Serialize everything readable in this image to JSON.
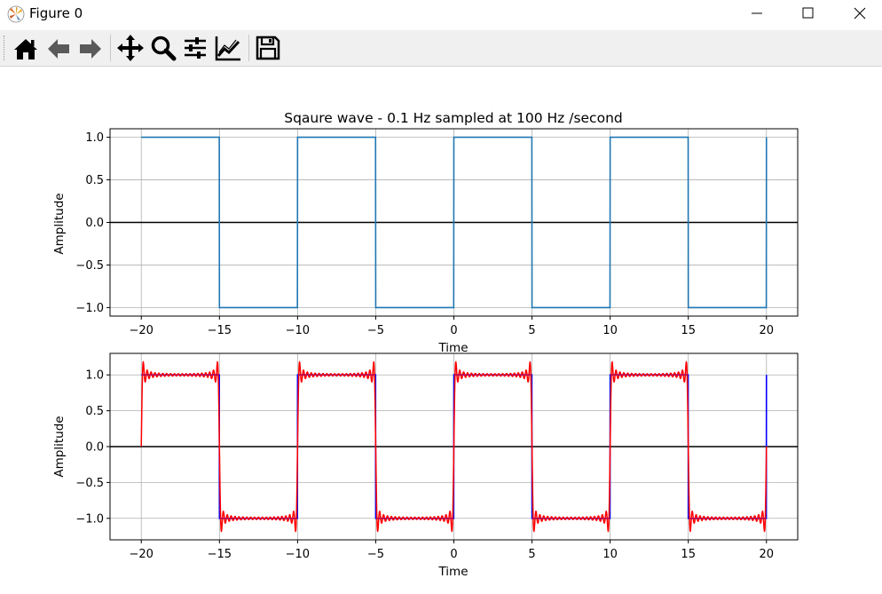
{
  "window": {
    "title": "Figure 0",
    "app_icon": "matplotlib-icon"
  },
  "toolbar": {
    "buttons": [
      {
        "name": "home",
        "icon": "home-icon"
      },
      {
        "name": "back",
        "icon": "arrow-left-icon"
      },
      {
        "name": "forward",
        "icon": "arrow-right-icon"
      },
      {
        "name": "pan",
        "icon": "move-icon"
      },
      {
        "name": "zoom",
        "icon": "magnifier-icon"
      },
      {
        "name": "subplots",
        "icon": "sliders-icon"
      },
      {
        "name": "customize",
        "icon": "chart-line-icon"
      },
      {
        "name": "save",
        "icon": "floppy-icon"
      }
    ]
  },
  "chart_data": [
    {
      "type": "line",
      "title": "Sqaure wave - 0.1 Hz sampled at 100 Hz /second",
      "xlabel": "Time",
      "ylabel": "Amplitude",
      "xlim": [
        -22,
        22
      ],
      "ylim": [
        -1.1,
        1.1
      ],
      "xticks": [
        -20,
        -15,
        -10,
        -5,
        0,
        5,
        10,
        15,
        20
      ],
      "xtick_labels": [
        "−20",
        "−15",
        "−10",
        "−5",
        "0",
        "5",
        "10",
        "15",
        "20"
      ],
      "yticks": [
        1.0,
        0.5,
        0.0,
        -0.5,
        -1.0
      ],
      "ytick_labels": [
        "1.0",
        "0.5",
        "0.0",
        "−0.5",
        "−1.0"
      ],
      "grid": true,
      "zero_line": true,
      "series": [
        {
          "function": "square",
          "frequency_hz": 0.1,
          "sample_rate_hz": 100,
          "x_range": [
            -20,
            20
          ],
          "color": "#1f77b4"
        }
      ]
    },
    {
      "type": "line",
      "xlabel": "Time",
      "ylabel": "Amplitude",
      "xlim": [
        -22,
        22
      ],
      "ylim": [
        -1.3,
        1.3
      ],
      "xticks": [
        -20,
        -15,
        -10,
        -5,
        0,
        5,
        10,
        15,
        20
      ],
      "xtick_labels": [
        "−20",
        "−15",
        "−10",
        "−5",
        "0",
        "5",
        "10",
        "15",
        "20"
      ],
      "yticks": [
        1.0,
        0.5,
        0.0,
        -0.5,
        -1.0
      ],
      "ytick_labels": [
        "1.0",
        "0.5",
        "0.0",
        "−0.5",
        "−1.0"
      ],
      "grid": true,
      "zero_line": true,
      "series": [
        {
          "function": "square",
          "frequency_hz": 0.1,
          "sample_rate_hz": 100,
          "x_range": [
            -20,
            20
          ],
          "color": "#0000ff"
        },
        {
          "function": "fourier_approximation_of_square",
          "frequency_hz": 0.1,
          "x_range": [
            -20,
            20
          ],
          "color": "#ff0000"
        }
      ]
    }
  ]
}
